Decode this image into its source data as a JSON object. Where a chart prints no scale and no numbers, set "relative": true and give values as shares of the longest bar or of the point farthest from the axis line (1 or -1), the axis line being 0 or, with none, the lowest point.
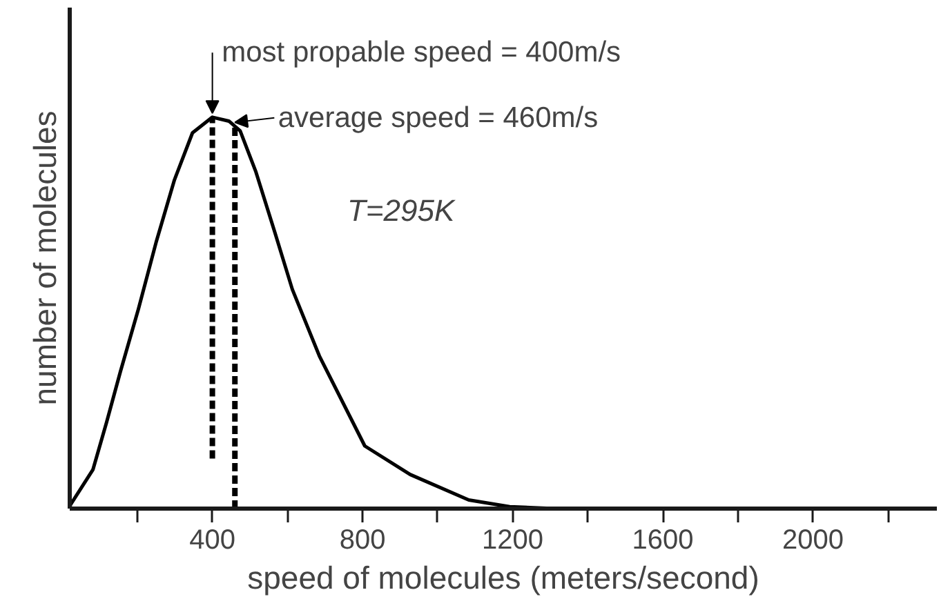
{
  "chart_data": {
    "type": "line",
    "relative": true,
    "xlabel": "speed of molecules (meters/second)",
    "ylabel": "number of molecules",
    "xlim": [
      20,
      2330
    ],
    "xticks": [
      {
        "value": 200,
        "label": null
      },
      400,
      {
        "value": 600,
        "label": null
      },
      800,
      {
        "value": 1000,
        "label": null
      },
      1200,
      {
        "value": 1400,
        "label": null
      },
      1600,
      {
        "value": 1800,
        "label": null
      },
      2000,
      {
        "value": 2200,
        "label": null
      }
    ],
    "x": [
      20,
      22,
      82,
      118,
      155,
      203,
      250,
      299,
      347,
      400,
      444,
      474,
      516,
      565,
      613,
      685,
      806,
      927,
      1083,
      1192,
      1313
    ],
    "series": [
      {
        "color": "#000000",
        "values": [
          0,
          0.01,
          0.1,
          0.22,
          0.35,
          0.51,
          0.68,
          0.84,
          0.96,
          1.0,
          0.99,
          0.965,
          0.86,
          0.71,
          0.56,
          0.39,
          0.16,
          0.087,
          0.022,
          0.005,
          0
        ]
      }
    ],
    "ref_lines": [
      {
        "axis": "x",
        "value": 400,
        "label": "most propable speed = 400m/s",
        "line_style": "dashed",
        "color": "#000000"
      },
      {
        "axis": "x",
        "value": 460,
        "label": "average speed = 460m/s",
        "line_style": "dashed",
        "color": "#000000"
      }
    ],
    "annotations": [
      "T=295K"
    ],
    "grid": false,
    "marker": "none",
    "line_style": "solid"
  }
}
